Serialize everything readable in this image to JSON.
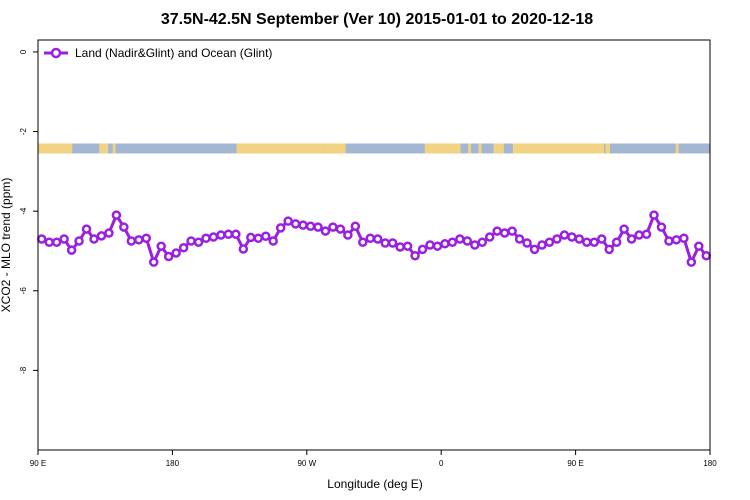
{
  "chart_data": {
    "type": "line",
    "title": "37.5N-42.5N September (Ver 10)   2015-01-01 to 2020-12-18",
    "xlabel": "Longitude (deg E)",
    "ylabel": "XCO2 - MLO trend (ppm)",
    "xlim": [
      90,
      540
    ],
    "ylim": [
      -10,
      0.3
    ],
    "x_ticks": [
      {
        "value": 90,
        "label": "90 E"
      },
      {
        "value": 180,
        "label": "180"
      },
      {
        "value": 270,
        "label": "90 W"
      },
      {
        "value": 360,
        "label": "0"
      },
      {
        "value": 450,
        "label": "90 E"
      },
      {
        "value": 540,
        "label": "180"
      }
    ],
    "y_ticks": [
      {
        "value": 0,
        "label": "0"
      },
      {
        "value": -2,
        "label": "-2"
      },
      {
        "value": -4,
        "label": "-4"
      },
      {
        "value": -6,
        "label": "-6"
      },
      {
        "value": -8,
        "label": "-8"
      }
    ],
    "grid": false,
    "legend_position": "top-left",
    "series": [
      {
        "name": "Land (Nadir&Glint) and Ocean (Glint)",
        "color": "#9a1fe0",
        "marker": "open-circle",
        "x": [
          92.5,
          97.5,
          102.5,
          107.5,
          112.5,
          117.5,
          122.5,
          127.5,
          132.5,
          137.5,
          142.5,
          147.5,
          152.5,
          157.5,
          162.5,
          167.5,
          172.5,
          177.5,
          182.5,
          187.5,
          192.5,
          197.5,
          202.5,
          207.5,
          212.5,
          217.5,
          222.5,
          227.5,
          232.5,
          237.5,
          242.5,
          247.5,
          252.5,
          257.5,
          262.5,
          267.5,
          272.5,
          277.5,
          282.5,
          287.5,
          292.5,
          297.5,
          302.5,
          307.5,
          312.5,
          317.5,
          322.5,
          327.5,
          332.5,
          337.5,
          342.5,
          347.5,
          352.5,
          357.5,
          362.5,
          367.5,
          372.5,
          377.5,
          382.5,
          387.5,
          392.5,
          397.5,
          402.5,
          407.5,
          412.5,
          417.5,
          422.5,
          427.5,
          432.5,
          437.5,
          442.5,
          447.5,
          452.5,
          457.5,
          462.5,
          467.5,
          472.5,
          477.5,
          482.5,
          487.5,
          492.5,
          497.5,
          502.5,
          507.5,
          512.5,
          517.5,
          522.5,
          527.5,
          532.5,
          537.5
        ],
        "y": [
          -4.7,
          -4.78,
          -4.78,
          -4.7,
          -4.98,
          -4.75,
          -4.45,
          -4.7,
          -4.62,
          -4.55,
          -4.1,
          -4.4,
          -4.75,
          -4.72,
          -4.68,
          -5.28,
          -4.88,
          -5.14,
          -5.05,
          -4.92,
          -4.75,
          -4.78,
          -4.68,
          -4.65,
          -4.6,
          -4.58,
          -4.58,
          -4.95,
          -4.66,
          -4.68,
          -4.63,
          -4.75,
          -4.42,
          -4.25,
          -4.32,
          -4.35,
          -4.38,
          -4.4,
          -4.5,
          -4.4,
          -4.45,
          -4.6,
          -4.38,
          -4.78,
          -4.68,
          -4.7,
          -4.8,
          -4.8,
          -4.9,
          -4.88,
          -5.12,
          -4.96,
          -4.85,
          -4.88,
          -4.82,
          -4.78,
          -4.7,
          -4.75,
          -4.85,
          -4.78,
          -4.65,
          -4.5,
          -4.55,
          -4.5,
          -4.7,
          -4.8,
          -4.96,
          -4.85,
          -4.78,
          -4.7,
          -4.6,
          -4.65,
          -4.7,
          -4.78,
          -4.78,
          -4.7,
          -4.96,
          -4.78,
          -4.45,
          -4.7,
          -4.6,
          -4.58,
          -4.1,
          -4.4,
          -4.75,
          -4.72,
          -4.68,
          -5.28,
          -4.88,
          -5.12
        ]
      }
    ],
    "land_ocean_band": {
      "y_range": [
        -2.55,
        -2.3
      ],
      "ocean_color": "#a3b7d3",
      "land_color": "#f2d283",
      "land_x_ranges": [
        [
          90,
          113
        ],
        [
          140,
          142
        ],
        [
          131,
          137
        ],
        [
          223,
          282
        ],
        [
          284,
          286
        ],
        [
          282,
          296
        ],
        [
          349,
          373
        ],
        [
          378,
          380
        ],
        [
          385,
          387
        ],
        [
          395,
          402
        ],
        [
          408,
          469
        ],
        [
          455,
          462
        ],
        [
          470,
          473
        ],
        [
          517,
          519
        ]
      ]
    }
  }
}
